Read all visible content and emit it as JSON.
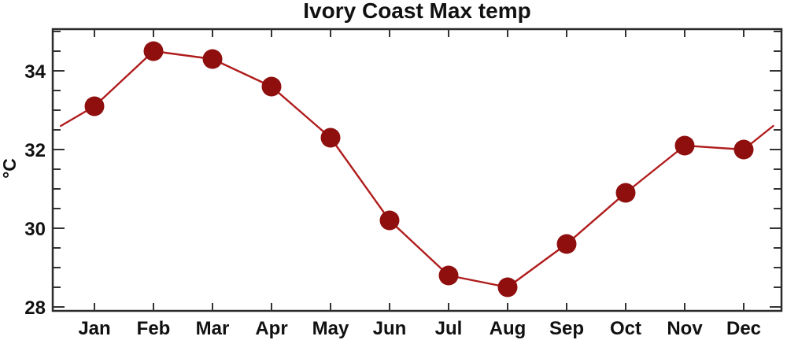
{
  "chart_data": {
    "type": "line",
    "title": "Ivory Coast Max temp",
    "ylabel": "°C",
    "categories": [
      "Jan",
      "Feb",
      "Mar",
      "Apr",
      "May",
      "Jun",
      "Jul",
      "Aug",
      "Sep",
      "Oct",
      "Nov",
      "Dec"
    ],
    "values": [
      33.1,
      34.5,
      34.3,
      33.6,
      32.3,
      30.2,
      28.8,
      28.5,
      29.6,
      30.9,
      32.1,
      32.0
    ],
    "xlabel": "",
    "yaxis": {
      "label_ticks": [
        28,
        30,
        32,
        34
      ],
      "minor_step": 0.5,
      "tick_min": 28,
      "tick_max": 35,
      "ylim": [
        27.9,
        35.1
      ]
    },
    "edge_continuation": {
      "left": {
        "month_index": -0.57,
        "value": 32.6
      },
      "right": {
        "month_index": 11.5,
        "value": 32.6
      }
    },
    "grid": "off",
    "legend": "none",
    "colors": {
      "line": "#b01c1c",
      "marker": "#8f0f0f",
      "frame": "#2b2b2b",
      "tick": "#333333",
      "text": "#111111",
      "background": "#ffffff"
    }
  }
}
